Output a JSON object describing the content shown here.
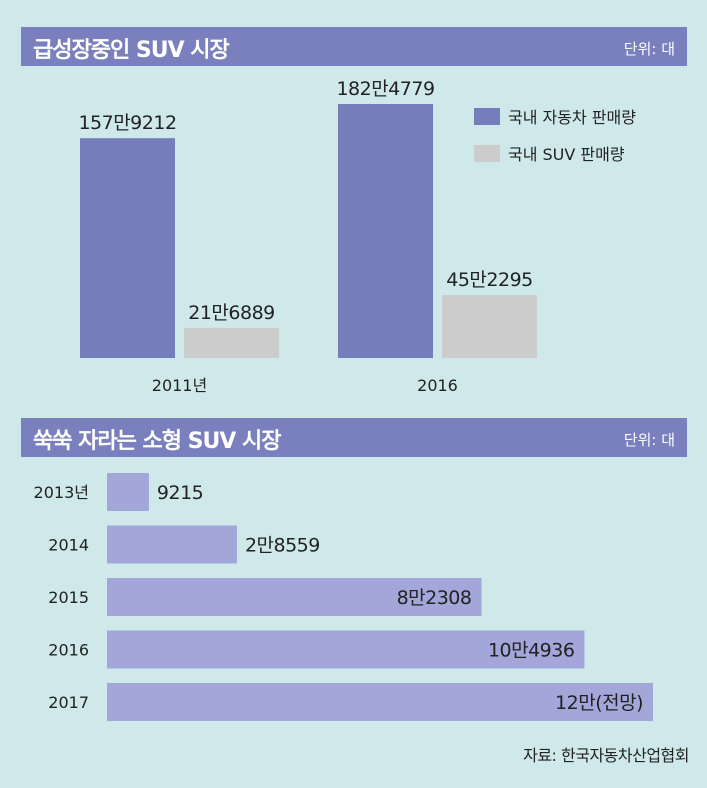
{
  "chart_data": [
    {
      "type": "bar",
      "title": "급성장중인 SUV 시장",
      "unit": "단위: 대",
      "categories": [
        "2011년",
        "2016"
      ],
      "series": [
        {
          "name": "국내 자동차 판매량",
          "values": [
            1579212,
            1824779
          ],
          "labels": [
            "157만9212",
            "182만4779"
          ]
        },
        {
          "name": "국내 SUV 판매량",
          "values": [
            216889,
            452295
          ],
          "labels": [
            "21만6889",
            "45만2295"
          ]
        }
      ],
      "legend": "top-right",
      "colors": [
        "#757dbb",
        "#cccccc"
      ]
    },
    {
      "type": "bar",
      "orientation": "horizontal",
      "title": "쑥쑥 자라는 소형 SUV 시장",
      "unit": "단위: 대",
      "categories": [
        "2013년",
        "2014",
        "2015",
        "2016",
        "2017"
      ],
      "values": [
        9215,
        28559,
        82308,
        104936,
        120000
      ],
      "labels": [
        "9215",
        "2만8559",
        "8만2308",
        "10만4936",
        "12만(전망)"
      ],
      "colors": [
        "#a2a6d8"
      ]
    }
  ],
  "source": "자료: 한국자동차산업협회"
}
